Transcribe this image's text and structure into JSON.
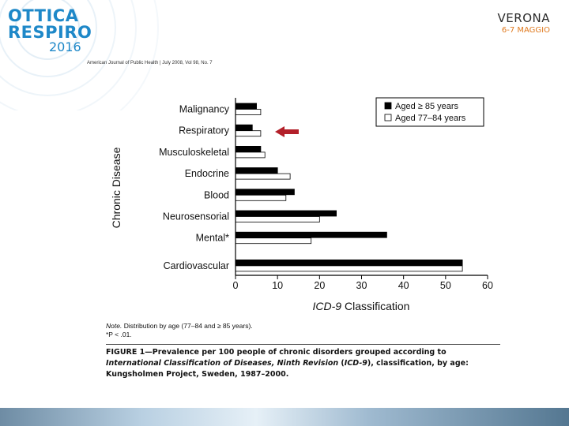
{
  "header": {
    "logo_left_line1": "OTTICA",
    "logo_left_line2": "RESPIRO",
    "logo_left_year": "2016",
    "logo_right_city": "VERONA",
    "logo_right_date": "6-7 MAGGIO",
    "brand_color": "#1e88c8",
    "accent_color": "#e07a1f"
  },
  "journal_line": "American Journal of Public Health | July 2008, Vol 98, No. 7",
  "chart_data": {
    "type": "bar",
    "orientation": "horizontal",
    "categories": [
      "Malignancy",
      "Respiratory",
      "Musculoskeletal",
      "Endocrine",
      "Blood",
      "Neurosensorial",
      "Mental*",
      "Cardiovascular"
    ],
    "series": [
      {
        "name": "Aged ≥ 85 years",
        "color": "#000000",
        "values": [
          5,
          4,
          6,
          10,
          14,
          24,
          36,
          54
        ]
      },
      {
        "name": "Aged 77–84 years",
        "color": "#ffffff",
        "values": [
          6,
          6,
          7,
          13,
          12,
          20,
          18,
          54
        ]
      }
    ],
    "xlabel_prefix": "ICD-9",
    "xlabel_suffix": " Classification",
    "ylabel": "Chronic Disease",
    "xlim": [
      0,
      60
    ],
    "xticks": [
      "0",
      "10",
      "20",
      "30",
      "40",
      "50",
      "60"
    ],
    "grid": false,
    "legend_position": "top-right",
    "annotation": "red arrow pointing to Respiratory",
    "annotation_color": "#b3202a"
  },
  "note_label": "Note.",
  "note_text": " Distribution by age (77–84 and ≥ 85 years).",
  "note_p": "*P < .01.",
  "caption": {
    "prefix": "FIGURE 1—Prevalence per 100 people of chronic disorders grouped according to ",
    "italic": "International Classification of Diseases, Ninth Revision",
    "mid": " (",
    "icd": "ICD-9",
    "suffix": "), classification, by age: Kungsholmen Project, Sweden, 1987–2000."
  }
}
